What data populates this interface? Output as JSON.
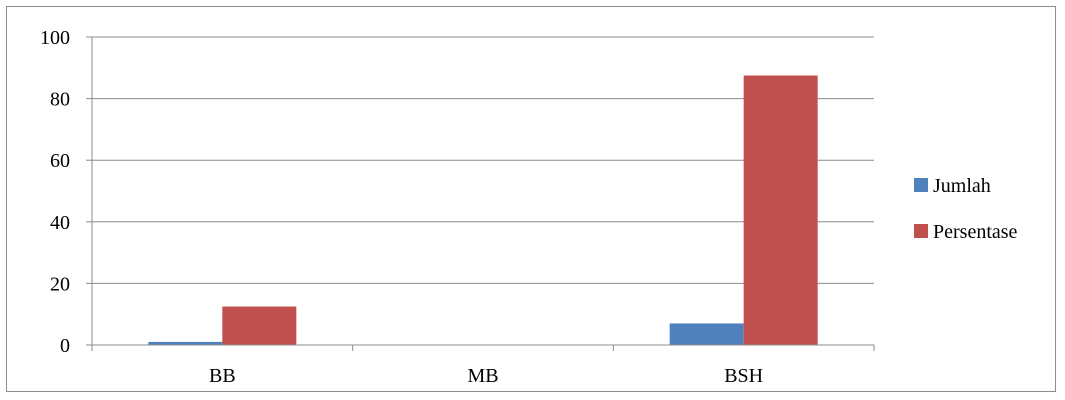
{
  "chart_data": {
    "type": "bar",
    "categories": [
      "BB",
      "MB",
      "BSH"
    ],
    "series": [
      {
        "name": "Jumlah",
        "values": [
          1,
          0,
          7
        ],
        "color": "#4f81bd"
      },
      {
        "name": "Persentase",
        "values": [
          12.5,
          0,
          87.5
        ],
        "color": "#c0504d"
      }
    ],
    "ylim": [
      0,
      100
    ],
    "yticks": [
      0,
      20,
      40,
      60,
      80,
      100
    ],
    "grid": true,
    "legend_position": "right"
  }
}
